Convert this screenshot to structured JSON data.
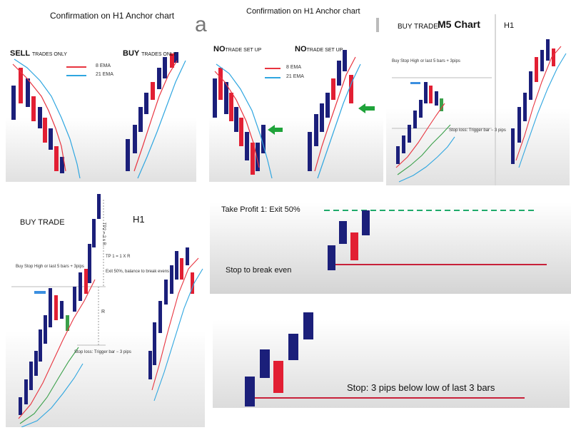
{
  "headers": {
    "left": "Confirmation on H1 Anchor chart",
    "right": "Confirmation on H1 Anchor chart",
    "stray_a": "a"
  },
  "panel_sell_buy": {
    "sell_label": "SELL",
    "sell_sub": "TRADES ONLY",
    "buy_label": "BUY",
    "buy_sub": "TRADES ONLY",
    "legend": [
      {
        "name": "8 EMA",
        "color": "#e8343f"
      },
      {
        "name": "21 EMA",
        "color": "#2fa6e0"
      }
    ]
  },
  "panel_no_trade": {
    "label1": "NO",
    "sub1": "TRADE SET UP",
    "label2": "NO",
    "sub2": "TRADE SET UP",
    "legend": [
      {
        "name": "8 EMA",
        "color": "#e8343f"
      },
      {
        "name": "21 EMA",
        "color": "#2fa6e0"
      }
    ]
  },
  "panel_m5": {
    "buy_trade": "BUY TRADE",
    "title": "M5 Chart",
    "h1": "H1",
    "buy_stop": "Buy Stop High or last 5 bars + 3pips",
    "stop_loss": "Stop loss: Trigger bar − 3 pips"
  },
  "panel_big": {
    "buy_trade": "BUY TRADE",
    "h1": "H1",
    "tp2": "TP2 = 2 x R",
    "tp1": "TP 1 = 1 X R",
    "exit": "Exit 50%, balance to break evens",
    "buy_stop": "Buy Stop High or last 5 bars + 3pips",
    "r": "R",
    "stop_loss": "Stop loss: Trigger bar − 3 pips"
  },
  "panel_tp": {
    "take_profit": "Take Profit 1: Exit 50%",
    "break_even": "Stop to break even"
  },
  "panel_stop": {
    "stop_text": "Stop: 3 pips below low of last 3 bars"
  },
  "colors": {
    "bull": "#1b1f7a",
    "bear": "#e21f33",
    "ema_fast": "#e8343f",
    "ema_slow": "#2fa6e0",
    "ema_green": "#3aa04a",
    "arrow_green": "#1fa33a",
    "arrow_blue": "#3b8fe0",
    "tp_line": "#1faa6a",
    "stop_line": "#c8213a"
  },
  "chart_data": {
    "type": "candlestick-schematic",
    "panels": [
      "SELL TRADES ONLY / BUY TRADES ONLY",
      "NO TRADE SET UP / NO TRADE SET UP",
      "BUY TRADE M5 Chart / H1",
      "BUY TRADE / H1",
      "Take Profit 1: Exit 50%",
      "Stop: 3 pips below low of last 3 bars"
    ]
  }
}
